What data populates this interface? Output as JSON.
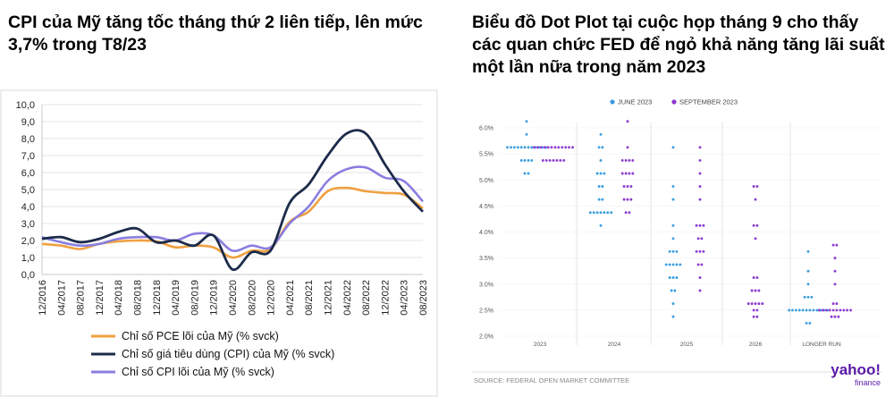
{
  "left": {
    "title": "CPI của Mỹ tăng tốc tháng thứ 2 liên tiếp, lên mức 3,7% trong T8/23",
    "chart_data": {
      "type": "line",
      "x": [
        "12/2016",
        "04/2017",
        "08/2017",
        "12/2017",
        "04/2018",
        "08/2018",
        "12/2018",
        "04/2019",
        "08/2019",
        "12/2019",
        "04/2020",
        "08/2020",
        "12/2020",
        "04/2021",
        "08/2021",
        "12/2021",
        "04/2022",
        "08/2022",
        "12/2022",
        "04/2023",
        "08/2023"
      ],
      "ylim": [
        0,
        10
      ],
      "yticks": [
        "0,0",
        "1,0",
        "2,0",
        "3,0",
        "4,0",
        "5,0",
        "6,0",
        "7,0",
        "8,0",
        "9,0",
        "10,0"
      ],
      "grid": true,
      "legend_position": "bottom",
      "series": [
        {
          "name": "Chỉ số PCE lõi của Mỹ (% svck)",
          "color": "#f0a040",
          "values": [
            1.8,
            1.7,
            1.5,
            1.8,
            1.95,
            2.0,
            1.95,
            1.6,
            1.7,
            1.6,
            1.0,
            1.4,
            1.5,
            3.1,
            3.7,
            4.9,
            5.1,
            4.9,
            4.8,
            4.7,
            3.9
          ]
        },
        {
          "name": "Chỉ số giá tiêu dùng (CPI) của Mỹ (% svck)",
          "color": "#1c2b4a",
          "values": [
            2.1,
            2.2,
            1.9,
            2.1,
            2.5,
            2.7,
            1.9,
            2.0,
            1.7,
            2.3,
            0.3,
            1.3,
            1.4,
            4.2,
            5.3,
            7.0,
            8.3,
            8.3,
            6.5,
            4.9,
            3.7
          ]
        },
        {
          "name": "Chỉ số CPI lõi của Mỹ (% svck)",
          "color": "#8a7ee0",
          "values": [
            2.2,
            1.9,
            1.7,
            1.8,
            2.1,
            2.2,
            2.2,
            2.0,
            2.4,
            2.3,
            1.4,
            1.7,
            1.6,
            3.0,
            4.0,
            5.5,
            6.2,
            6.3,
            5.7,
            5.5,
            4.3
          ]
        }
      ]
    }
  },
  "right": {
    "title": "Biểu đồ Dot Plot tại cuộc họp tháng 9 cho thấy các quan chức FED để ngỏ khả năng tăng lãi suất một lần nữa trong năm 2023",
    "chart_data": {
      "type": "scatter",
      "categories": [
        "2023",
        "2024",
        "2025",
        "2026",
        "LONGER RUN"
      ],
      "ylim": [
        2.0,
        6.0
      ],
      "yticks": [
        "6.0%",
        "5.5%",
        "5.0%",
        "4.5%",
        "4.0%",
        "3.5%",
        "3.0%",
        "2.5%",
        "2.0%"
      ],
      "legend_position": "top",
      "series": [
        {
          "name": "JUNE 2023",
          "color": "#3a9ee0",
          "dots": [
            [
              0,
              6.125,
              1
            ],
            [
              0,
              5.875,
              1
            ],
            [
              0,
              5.625,
              12
            ],
            [
              0,
              5.375,
              4
            ],
            [
              0,
              5.125,
              2
            ],
            [
              1,
              5.875,
              1
            ],
            [
              1,
              5.625,
              2
            ],
            [
              1,
              5.375,
              1
            ],
            [
              1,
              5.125,
              3
            ],
            [
              1,
              4.875,
              2
            ],
            [
              1,
              4.625,
              2
            ],
            [
              1,
              4.375,
              7
            ],
            [
              1,
              4.125,
              1
            ],
            [
              2,
              5.625,
              1
            ],
            [
              2,
              4.875,
              1
            ],
            [
              2,
              4.625,
              1
            ],
            [
              2,
              4.125,
              1
            ],
            [
              2,
              3.875,
              1
            ],
            [
              2,
              3.625,
              3
            ],
            [
              2,
              3.375,
              5
            ],
            [
              2,
              3.125,
              3
            ],
            [
              2,
              2.875,
              2
            ],
            [
              2,
              2.625,
              1
            ],
            [
              2,
              2.375,
              1
            ],
            [
              4,
              3.625,
              1
            ],
            [
              4,
              3.25,
              1
            ],
            [
              4,
              3.0,
              1
            ],
            [
              4,
              2.75,
              3
            ],
            [
              4,
              2.5,
              12
            ],
            [
              4,
              2.25,
              2
            ]
          ]
        },
        {
          "name": "SEPTEMBER 2023",
          "color": "#8c3cd0",
          "dots": [
            [
              0,
              5.625,
              12
            ],
            [
              0,
              5.375,
              7
            ],
            [
              1,
              6.125,
              1
            ],
            [
              1,
              5.625,
              1
            ],
            [
              1,
              5.375,
              4
            ],
            [
              1,
              5.125,
              4
            ],
            [
              1,
              4.875,
              3
            ],
            [
              1,
              4.625,
              3
            ],
            [
              1,
              4.375,
              2
            ],
            [
              2,
              5.625,
              1
            ],
            [
              2,
              5.375,
              1
            ],
            [
              2,
              5.125,
              1
            ],
            [
              2,
              4.875,
              1
            ],
            [
              2,
              4.625,
              1
            ],
            [
              2,
              4.125,
              3
            ],
            [
              2,
              3.875,
              2
            ],
            [
              2,
              3.625,
              3
            ],
            [
              2,
              3.375,
              2
            ],
            [
              2,
              3.125,
              1
            ],
            [
              2,
              2.875,
              1
            ],
            [
              3,
              4.875,
              2
            ],
            [
              3,
              4.625,
              1
            ],
            [
              3,
              4.125,
              2
            ],
            [
              3,
              3.875,
              1
            ],
            [
              3,
              3.125,
              2
            ],
            [
              3,
              2.875,
              3
            ],
            [
              3,
              2.625,
              5
            ],
            [
              3,
              2.5,
              2
            ],
            [
              3,
              2.375,
              2
            ],
            [
              4,
              3.75,
              2
            ],
            [
              4,
              3.5,
              1
            ],
            [
              4,
              3.25,
              1
            ],
            [
              4,
              3.0,
              1
            ],
            [
              4,
              2.625,
              2
            ],
            [
              4,
              2.5,
              10
            ],
            [
              4,
              2.375,
              3
            ]
          ]
        }
      ],
      "source": "SOURCE: FEDERAL OPEN MARKET COMMITTEE",
      "logo_text": "yahoo!",
      "logo_subtext": "finance"
    }
  }
}
